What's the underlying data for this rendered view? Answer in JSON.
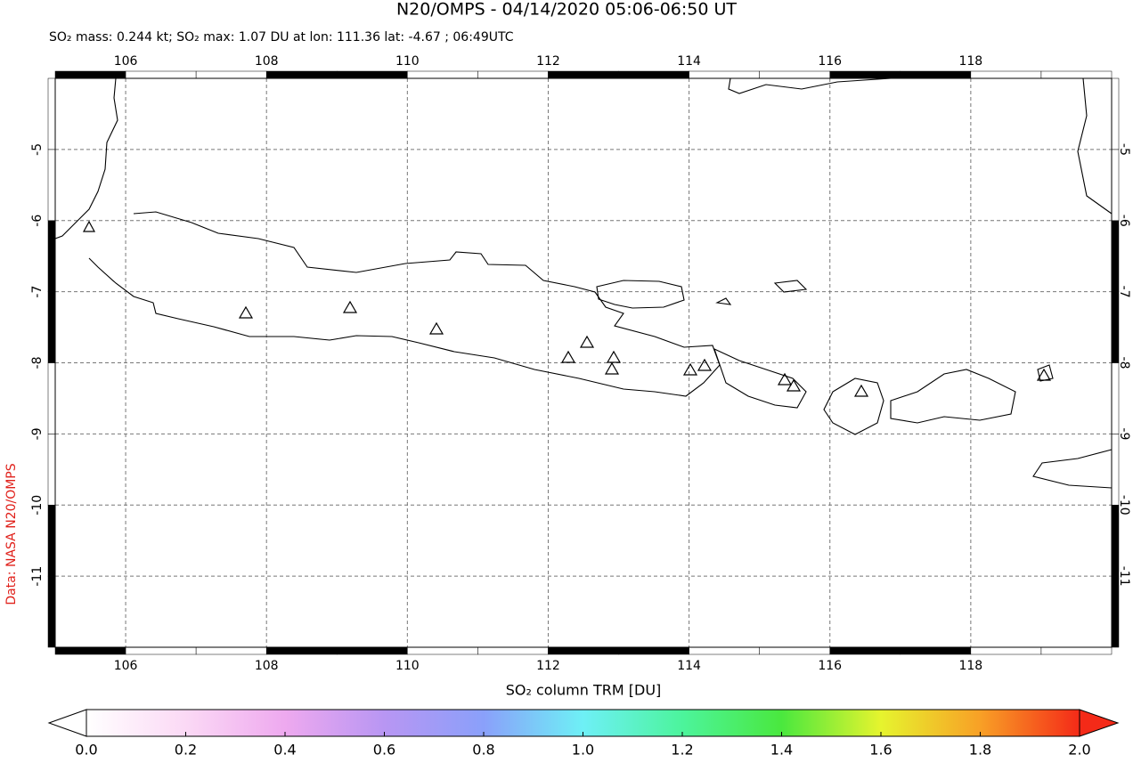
{
  "chart_data": {
    "type": "map",
    "title": "N20/OMPS - 04/14/2020 05:06-06:50 UT",
    "subtitle": "SO₂ mass: 0.244 kt; SO₂ max: 1.07 DU at lon: 111.36 lat: -4.67 ; 06:49UTC",
    "credit": "Data: NASA N20/OMPS",
    "xlim": [
      105,
      120
    ],
    "xticks": [
      106,
      108,
      110,
      112,
      114,
      116,
      118
    ],
    "ylim": [
      -12,
      -4
    ],
    "yticks": [
      -5,
      -6,
      -7,
      -8,
      -9,
      -10,
      -11
    ],
    "grid": true,
    "colorbar": {
      "label": "SO₂ column TRM [DU]",
      "lim": [
        0,
        2
      ],
      "ticks": [
        {
          "value": 0,
          "label": "0.0"
        },
        {
          "value": 0.2,
          "label": "0.2"
        },
        {
          "value": 0.4,
          "label": "0.4"
        },
        {
          "value": 0.6,
          "label": "0.6"
        },
        {
          "value": 0.8,
          "label": "0.8"
        },
        {
          "value": 1,
          "label": "1.0"
        },
        {
          "value": 1.2,
          "label": "1.2"
        },
        {
          "value": 1.4,
          "label": "1.4"
        },
        {
          "value": 1.6,
          "label": "1.6"
        },
        {
          "value": 1.8,
          "label": "1.8"
        },
        {
          "value": 2,
          "label": "2.0"
        }
      ]
    }
  }
}
